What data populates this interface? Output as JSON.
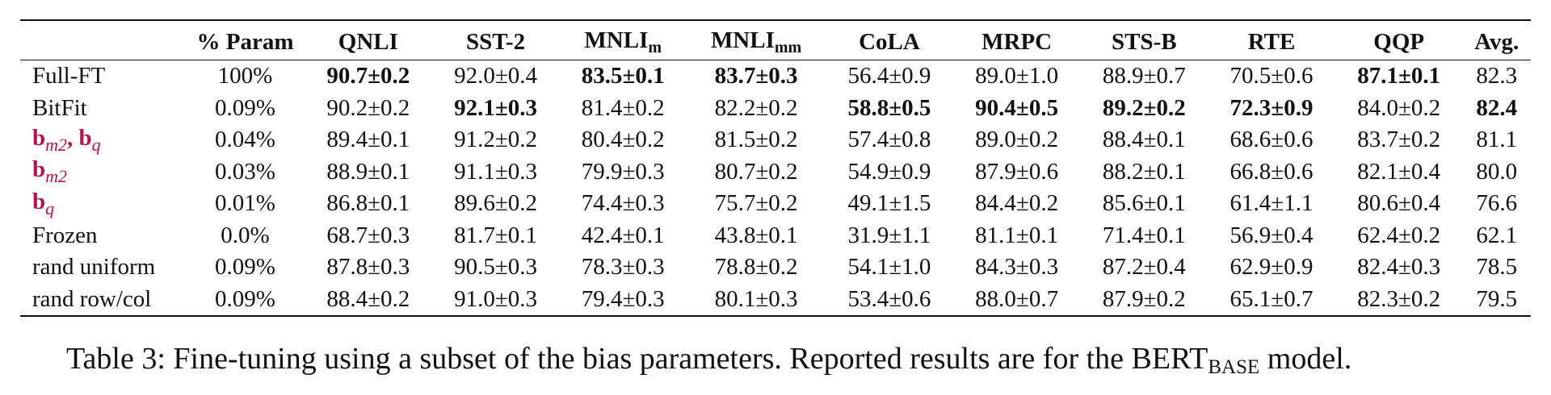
{
  "table": {
    "headers": {
      "method": "",
      "param": "% Param",
      "qnli": "QNLI",
      "sst2": "SST-2",
      "mnli_m_base": "MNLI",
      "mnli_m_sub": "m",
      "mnli_mm_base": "MNLI",
      "mnli_mm_sub": "mm",
      "cola": "CoLA",
      "mrpc": "MRPC",
      "stsb": "STS-B",
      "rte": "RTE",
      "qqp": "QQP",
      "avg": "Avg."
    },
    "rows": [
      {
        "method": "Full-FT",
        "param": "100%",
        "qnli": "90.7±0.2",
        "sst2": "92.0±0.4",
        "mnli_m": "83.5±0.1",
        "mnli_mm": "83.7±0.3",
        "cola": "56.4±0.9",
        "mrpc": "89.0±1.0",
        "stsb": "88.9±0.7",
        "rte": "70.5±0.6",
        "qqp": "87.1±0.1",
        "avg": "82.3"
      },
      {
        "method": "BitFit",
        "param": "0.09%",
        "qnli": "90.2±0.2",
        "sst2": "92.1±0.3",
        "mnli_m": "81.4±0.2",
        "mnli_mm": "82.2±0.2",
        "cola": "58.8±0.5",
        "mrpc": "90.4±0.5",
        "stsb": "89.2±0.2",
        "rte": "72.3±0.9",
        "qqp": "84.0±0.2",
        "avg": "82.4"
      },
      {
        "method_b1": "b",
        "method_s1": "m2",
        "method_sep": ", ",
        "method_b2": "b",
        "method_s2": "q",
        "param": "0.04%",
        "qnli": "89.4±0.1",
        "sst2": "91.2±0.2",
        "mnli_m": "80.4±0.2",
        "mnli_mm": "81.5±0.2",
        "cola": "57.4±0.8",
        "mrpc": "89.0±0.2",
        "stsb": "88.4±0.1",
        "rte": "68.6±0.6",
        "qqp": "83.7±0.2",
        "avg": "81.1"
      },
      {
        "method_b": "b",
        "method_s": "m2",
        "param": "0.03%",
        "qnli": "88.9±0.1",
        "sst2": "91.1±0.3",
        "mnli_m": "79.9±0.3",
        "mnli_mm": "80.7±0.2",
        "cola": "54.9±0.9",
        "mrpc": "87.9±0.6",
        "stsb": "88.2±0.1",
        "rte": "66.8±0.6",
        "qqp": "82.1±0.4",
        "avg": "80.0"
      },
      {
        "method_b": "b",
        "method_s": "q",
        "param": "0.01%",
        "qnli": "86.8±0.1",
        "sst2": "89.6±0.2",
        "mnli_m": "74.4±0.3",
        "mnli_mm": "75.7±0.2",
        "cola": "49.1±1.5",
        "mrpc": "84.4±0.2",
        "stsb": "85.6±0.1",
        "rte": "61.4±1.1",
        "qqp": "80.6±0.4",
        "avg": "76.6"
      },
      {
        "method": "Frozen",
        "param": "0.0%",
        "qnli": "68.7±0.3",
        "sst2": "81.7±0.1",
        "mnli_m": "42.4±0.1",
        "mnli_mm": "43.8±0.1",
        "cola": "31.9±1.1",
        "mrpc": "81.1±0.1",
        "stsb": "71.4±0.1",
        "rte": "56.9±0.4",
        "qqp": "62.4±0.2",
        "avg": "62.1"
      },
      {
        "method": "rand uniform",
        "param": "0.09%",
        "qnli": "87.8±0.3",
        "sst2": "90.5±0.3",
        "mnli_m": "78.3±0.3",
        "mnli_mm": "78.8±0.2",
        "cola": "54.1±1.0",
        "mrpc": "84.3±0.3",
        "stsb": "87.2±0.4",
        "rte": "62.9±0.9",
        "qqp": "82.4±0.3",
        "avg": "78.5"
      },
      {
        "method": "rand row/col",
        "param": "0.09%",
        "qnli": "88.4±0.2",
        "sst2": "91.0±0.3",
        "mnli_m": "79.4±0.3",
        "mnli_mm": "80.1±0.3",
        "cola": "53.4±0.6",
        "mrpc": "88.0±0.7",
        "stsb": "87.9±0.2",
        "rte": "65.1±0.7",
        "qqp": "82.3±0.2",
        "avg": "79.5"
      }
    ]
  },
  "caption": {
    "prefix": "Table 3:  Fine-tuning using a subset of the bias parameters. Reported results are for the BERT",
    "sub": "BASE",
    "suffix": " model."
  },
  "colors": {
    "method_symbol": "#b5134b",
    "text": "#111111"
  }
}
